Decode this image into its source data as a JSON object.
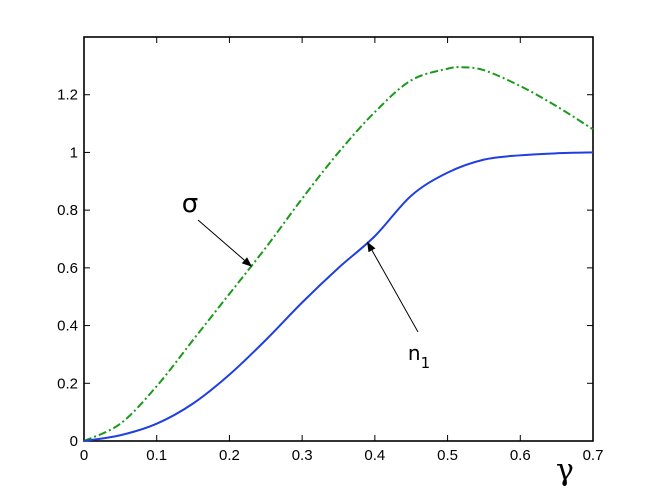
{
  "chart_data": {
    "type": "line",
    "title": "",
    "xlabel": "γ",
    "ylabel": "",
    "xlim": [
      0,
      0.7
    ],
    "ylim": [
      0,
      1.4
    ],
    "grid": false,
    "legend": "none",
    "x_ticks": [
      "0",
      "0.1",
      "0.2",
      "0.3",
      "0.4",
      "0.5",
      "0.6",
      "0.7"
    ],
    "y_ticks": [
      "0",
      "0.2",
      "0.4",
      "0.6",
      "0.8",
      "1",
      "1.2"
    ],
    "series": [
      {
        "name": "σ",
        "color": "#1a9a1a",
        "style": "dash-dot",
        "x": [
          0,
          0.05,
          0.1,
          0.15,
          0.2,
          0.25,
          0.3,
          0.35,
          0.4,
          0.45,
          0.5,
          0.52,
          0.55,
          0.6,
          0.65,
          0.7
        ],
        "y": [
          0,
          0.06,
          0.19,
          0.35,
          0.51,
          0.67,
          0.84,
          1.0,
          1.14,
          1.25,
          1.29,
          1.295,
          1.285,
          1.23,
          1.16,
          1.08
        ]
      },
      {
        "name": "n",
        "name_subscript": "1",
        "color": "#1f3fdf",
        "style": "solid",
        "x": [
          0,
          0.05,
          0.1,
          0.15,
          0.2,
          0.25,
          0.3,
          0.35,
          0.4,
          0.45,
          0.5,
          0.55,
          0.6,
          0.65,
          0.7
        ],
        "y": [
          0,
          0.02,
          0.06,
          0.13,
          0.23,
          0.35,
          0.48,
          0.6,
          0.71,
          0.85,
          0.93,
          0.975,
          0.99,
          0.997,
          1.0
        ]
      }
    ],
    "annotations": [
      {
        "label": "σ",
        "series": 0,
        "at_x": 0.23
      },
      {
        "label": "n",
        "subscript": "1",
        "series": 1,
        "at_x": 0.39
      }
    ]
  }
}
